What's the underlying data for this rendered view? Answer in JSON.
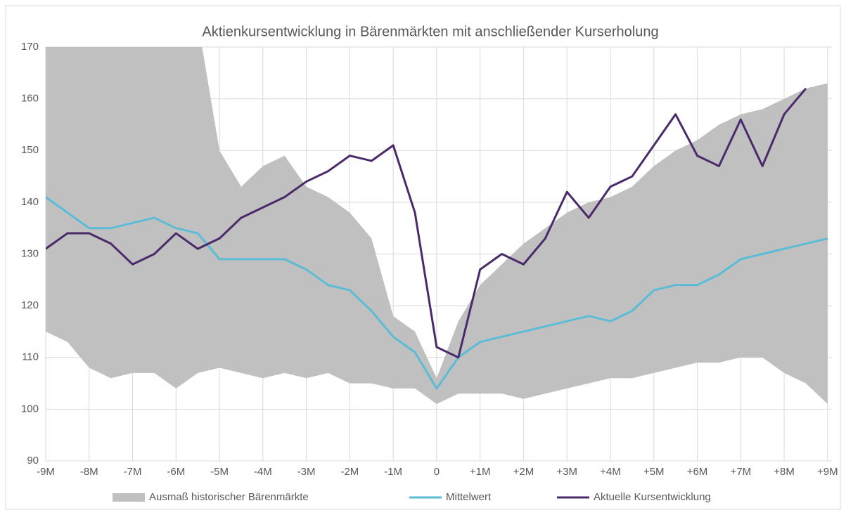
{
  "chart_data": {
    "type": "line",
    "title": "Aktienkursentwicklung in Bärenmärkten mit anschließender Kurserholung",
    "x": [
      -9,
      -8.5,
      -8,
      -7.5,
      -7,
      -6.5,
      -6,
      -5.5,
      -5,
      -4.5,
      -4,
      -3.5,
      -3,
      -2.5,
      -2,
      -1.5,
      -1,
      -0.5,
      0,
      0.5,
      1,
      1.5,
      2,
      2.5,
      3,
      3.5,
      4,
      4.5,
      5,
      5.5,
      6,
      6.5,
      7,
      7.5,
      8,
      8.5,
      9
    ],
    "series": [
      {
        "name": "Ausmaß historischer Bärenmärkte",
        "color": "#c0c0c0",
        "kind": "band",
        "high": [
          175,
          175,
          175,
          175,
          175,
          175,
          175,
          175,
          150,
          143,
          147,
          149,
          143,
          141,
          138,
          133,
          118,
          115,
          106,
          117,
          124,
          128,
          132,
          135,
          138,
          140,
          141,
          143,
          147,
          150,
          152,
          155,
          157,
          158,
          160,
          162,
          163
        ],
        "low": [
          115,
          113,
          108,
          106,
          107,
          107,
          104,
          107,
          108,
          107,
          106,
          107,
          106,
          107,
          105,
          105,
          104,
          104,
          101,
          103,
          103,
          103,
          102,
          103,
          104,
          105,
          106,
          106,
          107,
          108,
          109,
          109,
          110,
          110,
          107,
          105,
          101
        ]
      },
      {
        "name": "Mittelwert",
        "color": "#5bbcd6",
        "values": [
          141,
          138,
          135,
          135,
          136,
          137,
          135,
          134,
          129,
          129,
          129,
          129,
          127,
          124,
          123,
          119,
          114,
          111,
          104,
          110,
          113,
          114,
          115,
          116,
          117,
          118,
          117,
          119,
          123,
          124,
          124,
          126,
          129,
          130,
          131,
          132,
          133
        ]
      },
      {
        "name": "Aktuelle Kursentwicklung",
        "color": "#4b2a6b",
        "values": [
          131,
          134,
          134,
          132,
          128,
          130,
          134,
          131,
          133,
          137,
          139,
          141,
          144,
          146,
          149,
          148,
          151,
          138,
          112,
          110,
          127,
          130,
          128,
          133,
          142,
          137,
          143,
          145,
          151,
          157,
          149,
          147,
          156,
          147,
          157,
          162,
          null
        ]
      }
    ],
    "xlim": [
      -9,
      9.1
    ],
    "ylim": [
      90,
      170
    ],
    "xticks": [
      {
        "value": -9,
        "label": "-9M"
      },
      {
        "value": -8,
        "label": "-8M"
      },
      {
        "value": -7,
        "label": "-7M"
      },
      {
        "value": -6,
        "label": "-6M"
      },
      {
        "value": -5,
        "label": "-5M"
      },
      {
        "value": -4,
        "label": "-4M"
      },
      {
        "value": -3,
        "label": "-3M"
      },
      {
        "value": -2,
        "label": "-2M"
      },
      {
        "value": -1,
        "label": "-1M"
      },
      0,
      {
        "value": 1,
        "label": "+1M"
      },
      {
        "value": 2,
        "label": "+2M"
      },
      {
        "value": 3,
        "label": "+3M"
      },
      {
        "value": 4,
        "label": "+4M"
      },
      {
        "value": 5,
        "label": "+5M"
      },
      {
        "value": 6,
        "label": "+6M"
      },
      {
        "value": 7,
        "label": "+7M"
      },
      {
        "value": 8,
        "label": "+8M"
      },
      {
        "value": 9,
        "label": "+9M"
      }
    ],
    "yticks": [
      90,
      100,
      110,
      120,
      130,
      140,
      150,
      160,
      170
    ],
    "grid": true
  }
}
